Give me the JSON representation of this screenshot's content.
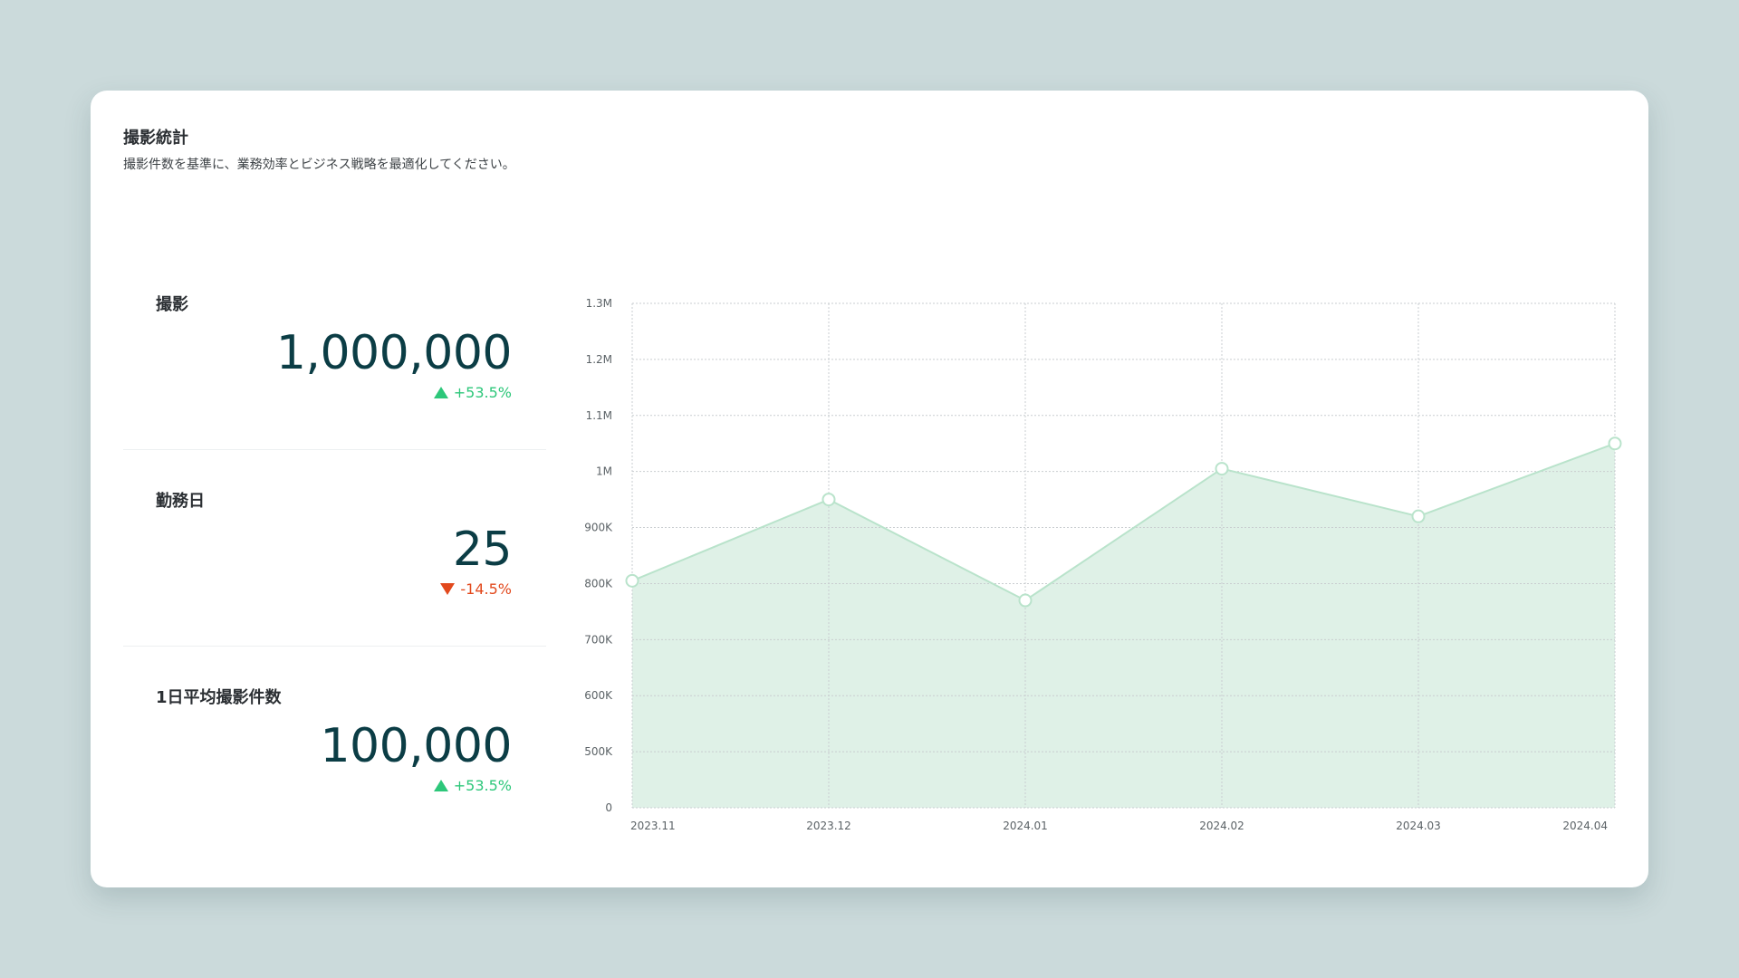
{
  "card": {
    "title": "撮影統計",
    "subtitle": "撮影件数を基準に、業務効率とビジネス戦略を最適化してください。"
  },
  "stats": [
    {
      "label": "撮影",
      "value": "1,000,000",
      "change": "+53.5%",
      "trend": "up"
    },
    {
      "label": "勤務日",
      "value": "25",
      "change": "-14.5%",
      "trend": "down"
    },
    {
      "label": "1日平均撮影件数",
      "value": "100,000",
      "change": "+53.5%",
      "trend": "up"
    }
  ],
  "colors": {
    "accent": "#0b3d45",
    "up": "#2dc77a",
    "down": "#e2491d",
    "area_fill": "#dff1e7",
    "area_line": "#b9e3cb"
  },
  "chart_data": {
    "type": "area",
    "x": [
      "2023.11",
      "2023.12",
      "2024.01",
      "2024.02",
      "2024.03",
      "2024.04"
    ],
    "series": [
      {
        "values": [
          805000,
          950000,
          770000,
          1005000,
          920000,
          1050000
        ]
      }
    ],
    "ylim": [
      0,
      1300000
    ],
    "yticks": [
      0,
      500000,
      600000,
      700000,
      800000,
      900000,
      1000000,
      1100000,
      1200000,
      1300000
    ],
    "ytick_labels": [
      "0",
      "500K",
      "600K",
      "700K",
      "800K",
      "900K",
      "1M",
      "1.1M",
      "1.2M",
      "1.3M"
    ],
    "grid": true
  }
}
